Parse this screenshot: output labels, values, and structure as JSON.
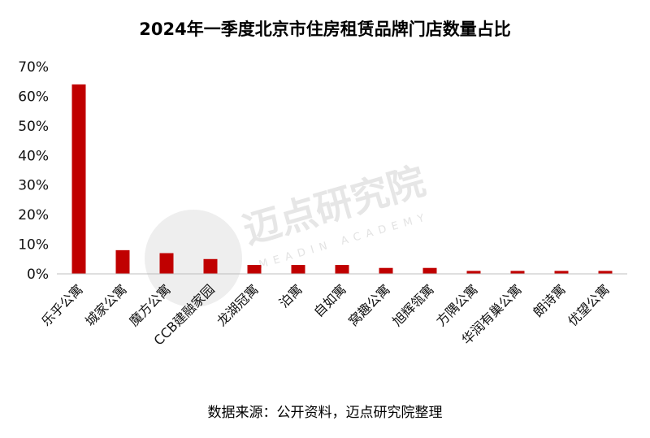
{
  "title": "2024年一季度北京市住房租赁品牌门店数量占比",
  "source": "数据来源：公开资料，迈点研究院整理",
  "watermark": {
    "name": "迈点研究院",
    "sub": "MEADIN ACADEMY"
  },
  "colors": {
    "bar": "#c00000",
    "axis": "#bfbfbf"
  },
  "chart_data": {
    "type": "bar",
    "title": "2024年一季度北京市住房租赁品牌门店数量占比",
    "xlabel": "",
    "ylabel": "",
    "categories": [
      "乐乎公寓",
      "城家公寓",
      "魔方公寓",
      "CCB建融家园",
      "龙湖冠寓",
      "泊寓",
      "自如寓",
      "窝趣公寓",
      "旭辉瓴寓",
      "方隅公寓",
      "华润有巢公寓",
      "朗诗寓",
      "优望公寓"
    ],
    "values": [
      64,
      8,
      7,
      5,
      3,
      3,
      3,
      2,
      2,
      1,
      1,
      1,
      1
    ],
    "ylim": [
      0,
      70
    ],
    "yticks": [
      0,
      10,
      20,
      30,
      40,
      50,
      60,
      70
    ],
    "tick_format": "%",
    "grid": false,
    "legend": "none"
  }
}
